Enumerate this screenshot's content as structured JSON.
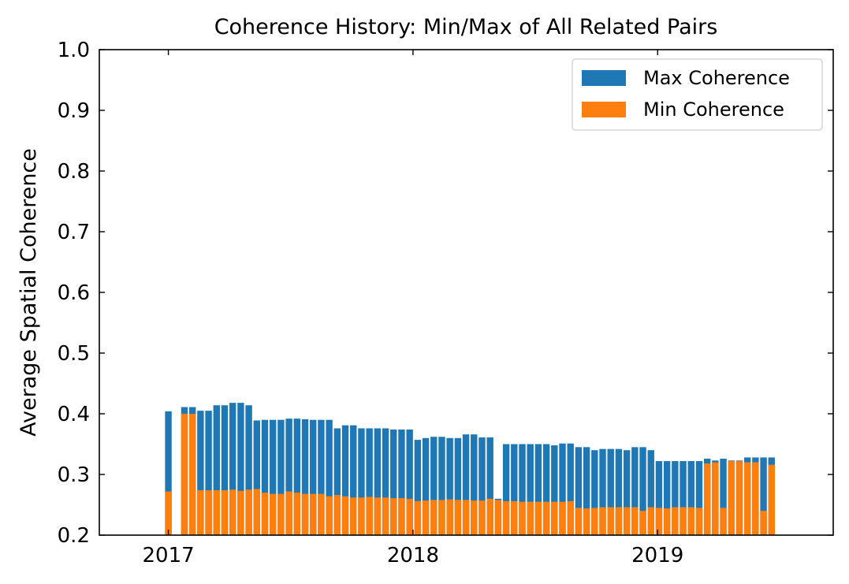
{
  "chart_data": {
    "type": "bar",
    "title": "Coherence History: Min/Max of All Related Pairs",
    "xlabel": "",
    "ylabel": "Average Spatial Coherence",
    "ylim": [
      0.2,
      1.0
    ],
    "xlim": [
      "2016-09-20",
      "2019-09-20"
    ],
    "x_ticks": [
      {
        "date": "2017-01-01",
        "label": "2017"
      },
      {
        "date": "2018-01-01",
        "label": "2018"
      },
      {
        "date": "2019-01-01",
        "label": "2019"
      }
    ],
    "y_ticks": [
      "0.2",
      "0.3",
      "0.4",
      "0.5",
      "0.6",
      "0.7",
      "0.8",
      "0.9",
      "1.0"
    ],
    "y_tick_values": [
      0.2,
      0.3,
      0.4,
      0.5,
      0.6,
      0.7,
      0.8,
      0.9,
      1.0
    ],
    "legend_position": "top-right",
    "grid": false,
    "bar_style": "overlapped",
    "x": [
      "2017-01-01",
      "2017-01-25",
      "2017-02-06",
      "2017-02-18",
      "2017-03-02",
      "2017-03-14",
      "2017-03-26",
      "2017-04-07",
      "2017-04-19",
      "2017-05-01",
      "2017-05-13",
      "2017-05-25",
      "2017-06-06",
      "2017-06-18",
      "2017-06-30",
      "2017-07-12",
      "2017-07-24",
      "2017-08-05",
      "2017-08-17",
      "2017-08-29",
      "2017-09-10",
      "2017-09-22",
      "2017-10-04",
      "2017-10-16",
      "2017-10-28",
      "2017-11-09",
      "2017-11-21",
      "2017-12-03",
      "2017-12-15",
      "2017-12-27",
      "2018-01-08",
      "2018-01-20",
      "2018-02-01",
      "2018-02-13",
      "2018-02-25",
      "2018-03-09",
      "2018-03-21",
      "2018-04-02",
      "2018-04-14",
      "2018-04-26",
      "2018-05-08",
      "2018-05-20",
      "2018-06-01",
      "2018-06-13",
      "2018-06-25",
      "2018-07-07",
      "2018-07-19",
      "2018-07-31",
      "2018-08-12",
      "2018-08-24",
      "2018-09-05",
      "2018-09-17",
      "2018-09-29",
      "2018-10-11",
      "2018-10-23",
      "2018-11-04",
      "2018-11-16",
      "2018-11-28",
      "2018-12-10",
      "2018-12-22",
      "2019-01-03",
      "2019-01-15",
      "2019-01-27",
      "2019-02-08",
      "2019-02-20",
      "2019-03-04",
      "2019-03-16",
      "2019-03-28",
      "2019-04-09",
      "2019-04-21",
      "2019-05-03",
      "2019-05-15",
      "2019-05-27",
      "2019-06-08",
      "2019-06-20"
    ],
    "series": [
      {
        "name": "Max Coherence",
        "color": "#1f77b4",
        "values": [
          0.404,
          0.411,
          0.411,
          0.405,
          0.405,
          0.414,
          0.414,
          0.418,
          0.418,
          0.414,
          0.389,
          0.39,
          0.39,
          0.39,
          0.392,
          0.392,
          0.391,
          0.39,
          0.39,
          0.39,
          0.376,
          0.381,
          0.381,
          0.376,
          0.376,
          0.376,
          0.376,
          0.374,
          0.374,
          0.374,
          0.357,
          0.36,
          0.362,
          0.362,
          0.36,
          0.36,
          0.366,
          0.366,
          0.361,
          0.361,
          0.26,
          0.35,
          0.35,
          0.35,
          0.35,
          0.35,
          0.35,
          0.348,
          0.351,
          0.351,
          0.345,
          0.345,
          0.34,
          0.342,
          0.342,
          0.342,
          0.34,
          0.345,
          0.345,
          0.34,
          0.322,
          0.322,
          0.322,
          0.322,
          0.322,
          0.322,
          0.326,
          0.323,
          0.326,
          0.323,
          0.323,
          0.328,
          0.328,
          0.328,
          0.328
        ]
      },
      {
        "name": "Min Coherence",
        "color": "#ff7f0e",
        "values": [
          0.272,
          0.4,
          0.4,
          0.274,
          0.274,
          0.274,
          0.274,
          0.275,
          0.273,
          0.275,
          0.276,
          0.27,
          0.268,
          0.268,
          0.272,
          0.27,
          0.268,
          0.268,
          0.268,
          0.264,
          0.266,
          0.264,
          0.262,
          0.262,
          0.263,
          0.262,
          0.262,
          0.261,
          0.261,
          0.26,
          0.256,
          0.257,
          0.258,
          0.258,
          0.259,
          0.258,
          0.258,
          0.257,
          0.257,
          0.26,
          0.258,
          0.256,
          0.256,
          0.255,
          0.255,
          0.255,
          0.255,
          0.255,
          0.255,
          0.256,
          0.245,
          0.244,
          0.245,
          0.246,
          0.246,
          0.246,
          0.246,
          0.246,
          0.24,
          0.246,
          0.245,
          0.244,
          0.246,
          0.246,
          0.246,
          0.245,
          0.318,
          0.32,
          0.245,
          0.322,
          0.322,
          0.32,
          0.32,
          0.24,
          0.316
        ]
      }
    ]
  }
}
